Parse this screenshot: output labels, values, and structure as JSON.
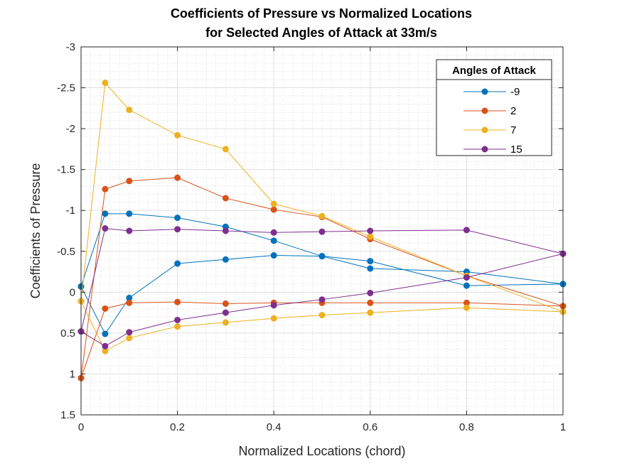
{
  "chart_data": {
    "type": "line",
    "title": [
      "Coefficients of Pressure vs Normalized Locations",
      "for Selected Angles of Attack at 33m/s"
    ],
    "xlabel": "Normalized Locations (chord)",
    "ylabel": "Coefficients of Pressure",
    "xlim": [
      0,
      1
    ],
    "ylim": [
      -3,
      1.5
    ],
    "y_reversed": true,
    "x_ticks": [
      0,
      0.2,
      0.4,
      0.6,
      0.8,
      1
    ],
    "x_tick_labels": [
      "0",
      "0.2",
      "0.4",
      "0.6",
      "0.8",
      "1"
    ],
    "y_ticks": [
      -3,
      -2.5,
      -2,
      -1.5,
      -1,
      -0.5,
      0,
      0.5,
      1,
      1.5
    ],
    "y_tick_labels": [
      "-3",
      "-2.5",
      "-2",
      "-1.5",
      "-1",
      "-0.5",
      "0",
      "0.5",
      "1",
      "1.5"
    ],
    "grid": true,
    "minor_grid": true,
    "legend": {
      "title": "Angles of Attack",
      "location": "top-right"
    },
    "series": [
      {
        "name": "-9",
        "color": "#0072BD",
        "segments": [
          {
            "x": [
              0,
              0.05,
              0.1,
              0.2,
              0.3,
              0.4,
              0.5,
              0.6,
              0.8,
              1
            ],
            "y": [
              -0.07,
              -0.96,
              -0.96,
              -0.91,
              -0.8,
              -0.63,
              -0.44,
              -0.29,
              -0.25,
              -0.1
            ]
          },
          {
            "x": [
              0,
              0.05,
              0.1,
              0.2,
              0.3,
              0.4,
              0.5,
              0.6,
              0.8,
              1
            ],
            "y": [
              -0.07,
              0.51,
              0.07,
              -0.35,
              -0.4,
              -0.45,
              -0.44,
              -0.38,
              -0.08,
              -0.1
            ]
          }
        ]
      },
      {
        "name": "2",
        "color": "#D95319",
        "segments": [
          {
            "x": [
              0,
              0.05,
              0.1,
              0.2,
              0.3,
              0.4,
              0.5,
              0.6,
              0.8,
              1
            ],
            "y": [
              1.05,
              -1.26,
              -1.36,
              -1.4,
              -1.15,
              -1.01,
              -0.92,
              -0.65,
              -0.2,
              0.17
            ]
          },
          {
            "x": [
              0,
              0.05,
              0.1,
              0.2,
              0.3,
              0.4,
              0.5,
              0.6,
              0.8,
              1
            ],
            "y": [
              1.05,
              0.2,
              0.13,
              0.12,
              0.14,
              0.13,
              0.13,
              0.13,
              0.13,
              0.17
            ]
          }
        ]
      },
      {
        "name": "7",
        "color": "#EDB120",
        "segments": [
          {
            "x": [
              0,
              0.05,
              0.1,
              0.2,
              0.3,
              0.4,
              0.5,
              0.6,
              0.8,
              1
            ],
            "y": [
              0.11,
              -2.56,
              -2.23,
              -1.92,
              -1.75,
              -1.08,
              -0.93,
              -0.68,
              -0.2,
              0.24
            ]
          },
          {
            "x": [
              0,
              0.05,
              0.1,
              0.2,
              0.3,
              0.4,
              0.5,
              0.6,
              0.8,
              1
            ],
            "y": [
              0.11,
              0.72,
              0.56,
              0.42,
              0.37,
              0.32,
              0.28,
              0.25,
              0.19,
              0.24
            ]
          }
        ]
      },
      {
        "name": "15",
        "color": "#7E2F8E",
        "segments": [
          {
            "x": [
              0,
              0.05,
              0.1,
              0.2,
              0.3,
              0.4,
              0.5,
              0.6,
              0.8,
              1
            ],
            "y": [
              0.48,
              -0.78,
              -0.75,
              -0.77,
              -0.75,
              -0.73,
              -0.74,
              -0.75,
              -0.76,
              -0.47
            ]
          },
          {
            "x": [
              0,
              0.05,
              0.1,
              0.2,
              0.3,
              0.4,
              0.5,
              0.6,
              0.8,
              1
            ],
            "y": [
              0.48,
              0.66,
              0.49,
              0.34,
              0.25,
              0.16,
              0.09,
              0.01,
              -0.18,
              -0.47
            ]
          }
        ]
      }
    ]
  }
}
